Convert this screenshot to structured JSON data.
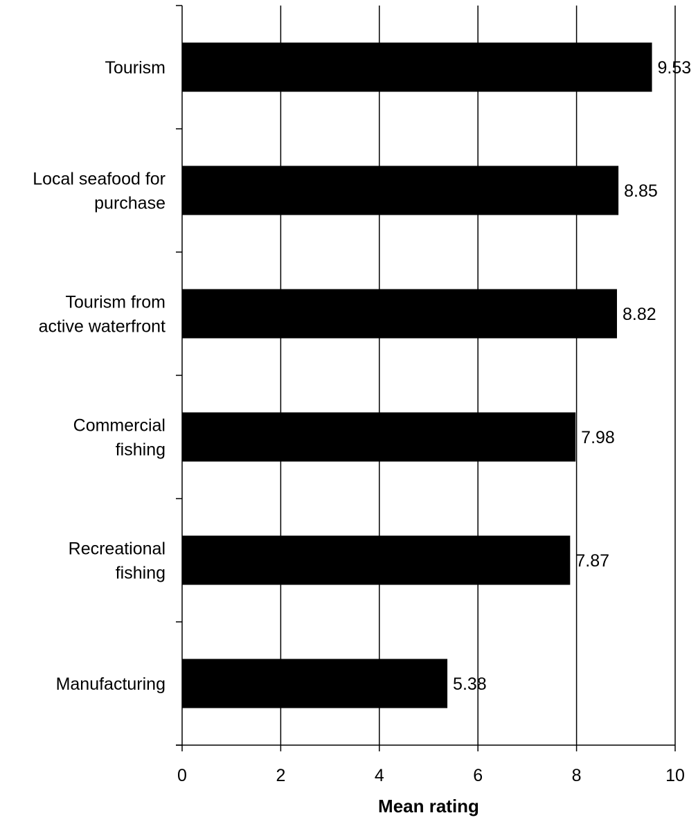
{
  "chart_data": {
    "type": "bar",
    "orientation": "horizontal",
    "categories": [
      "Tourism",
      "Local seafood for purchase",
      "Tourism from active waterfront",
      "Commercial fishing",
      "Recreational fishing",
      "Manufacturing"
    ],
    "category_label_lines": [
      [
        "Tourism"
      ],
      [
        "Local seafood for",
        "purchase"
      ],
      [
        "Tourism from",
        "active waterfront"
      ],
      [
        "Commercial",
        "fishing"
      ],
      [
        "Recreational",
        "fishing"
      ],
      [
        "Manufacturing"
      ]
    ],
    "values": [
      9.53,
      8.85,
      8.82,
      7.98,
      7.87,
      5.38
    ],
    "value_labels": [
      "9.53",
      "8.85",
      "8.82",
      "7.98",
      "7.87",
      "5.38"
    ],
    "xlabel": "Mean rating",
    "ylabel": "",
    "xlim": [
      0,
      10
    ],
    "xticks": [
      "0",
      "2",
      "4",
      "6",
      "8",
      "10"
    ],
    "grid": "vertical",
    "bar_color": "#000000"
  }
}
